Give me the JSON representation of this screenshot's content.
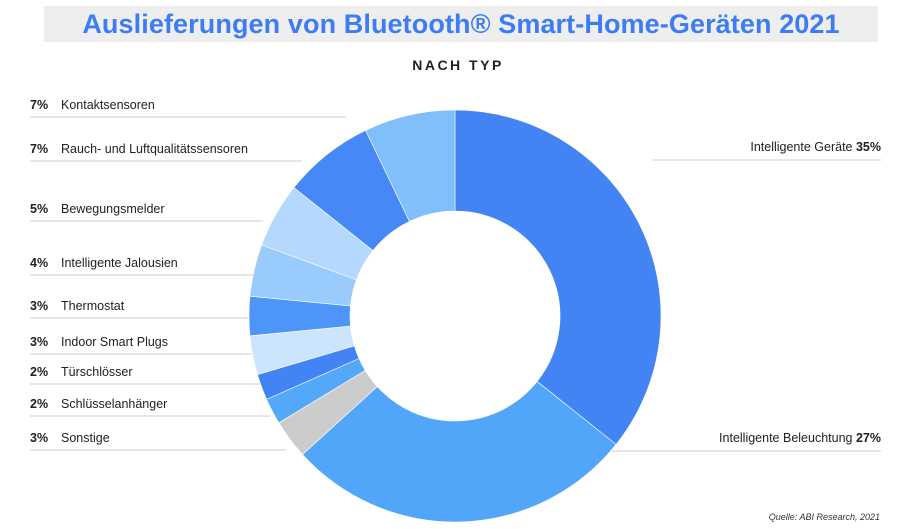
{
  "title": "Auslieferungen von Bluetooth® Smart-Home-Geräten 2021",
  "subtitle": "NACH TYP",
  "source": "Quelle: ABI Research, 2021",
  "chart_data": {
    "type": "pie",
    "variant": "donut",
    "slices": [
      {
        "label": "Intelligente Geräte",
        "value": 35,
        "display": "35%",
        "color": "#4384f5"
      },
      {
        "label": "Intelligente Beleuchtung",
        "value": 27,
        "display": "27%",
        "color": "#52a6fa"
      },
      {
        "label": "Sonstige",
        "value": 3,
        "display": "3%",
        "color": "#cccccc"
      },
      {
        "label": "Schlüsselanhänger",
        "value": 2,
        "display": "2%",
        "color": "#54a8fa"
      },
      {
        "label": "Türschlösser",
        "value": 2,
        "display": "2%",
        "color": "#4384f5"
      },
      {
        "label": "Indoor Smart Plugs",
        "value": 3,
        "display": "3%",
        "color": "#cde4fd"
      },
      {
        "label": "Thermostat",
        "value": 3,
        "display": "3%",
        "color": "#4d95f8"
      },
      {
        "label": "Intelligente Jalousien",
        "value": 4,
        "display": "4%",
        "color": "#99ccfd"
      },
      {
        "label": "Bewegungsmelder",
        "value": 5,
        "display": "5%",
        "color": "#b5d9fe"
      },
      {
        "label": "Rauch- und Luftqualitätssensoren",
        "value": 7,
        "display": "7%",
        "color": "#4688f5"
      },
      {
        "label": "Kontaktsensoren",
        "value": 7,
        "display": "7%",
        "color": "#80bffc"
      }
    ]
  }
}
